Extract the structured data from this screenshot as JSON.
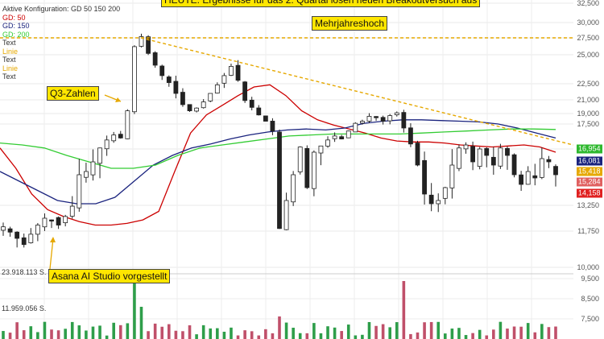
{
  "legend": {
    "title": "Aktive Konfiguration: GD 50 150 200",
    "items": [
      {
        "label": "GD: 50",
        "color": "#cc0000"
      },
      {
        "label": "GD: 150",
        "color": "#1a237e"
      },
      {
        "label": "GD: 200",
        "color": "#33cc33"
      },
      {
        "label": "Text",
        "color": "#333333"
      },
      {
        "label": "Linie",
        "color": "#e6a800"
      },
      {
        "label": "Text",
        "color": "#333333"
      },
      {
        "label": "Linie",
        "color": "#e6a800"
      },
      {
        "label": "Text",
        "color": "#333333"
      }
    ]
  },
  "annotations": {
    "headline": "HEUTE: Ergebnisse für das 2. Quartal lösen neuen Breakoutversuch aus",
    "mehrjahreshoch": "Mehrjahreshoch",
    "q3": "Q3-Zahlen",
    "asana": "Asana AI Studio vorgestellt"
  },
  "volume_labels": [
    "23.918.113 S.",
    "11.959.056 S."
  ],
  "price_tags": [
    {
      "label": "16,954",
      "value": 16.954,
      "color": "#2eb82e"
    },
    {
      "label": "16,081",
      "value": 16.081,
      "color": "#1a237e"
    },
    {
      "label": "15,418",
      "value": 15.418,
      "color": "#e6a800"
    },
    {
      "label": "15,284",
      "value": 15.284,
      "color": "#e06060"
    },
    {
      "label": "14,158",
      "value": 14.158,
      "color": "#e02020"
    }
  ],
  "chart_data": {
    "type": "candlestick",
    "price_axis": {
      "ticks": [
        "32,500",
        "30,000",
        "27,500",
        "25,000",
        "22,500",
        "21,000",
        "19,000",
        "17,500",
        "15,000",
        "13,250",
        "11,750",
        "10,000"
      ],
      "values": [
        32.5,
        30.0,
        27.5,
        25.0,
        22.5,
        21.0,
        19.0,
        17.5,
        15.0,
        13.25,
        11.75,
        10.0
      ],
      "range": [
        9.2,
        33.5
      ]
    },
    "volume_axis": {
      "ticks": [
        "9,500",
        "8,500",
        "7,500"
      ],
      "values": [
        9.5,
        8.5,
        7.5
      ]
    },
    "close_series": [
      12.0,
      11.7,
      11.4,
      11.1,
      11.6,
      12.1,
      12.5,
      12.4,
      12.1,
      12.6,
      13.2,
      14.2,
      14.3,
      14.6,
      15.1,
      15.9,
      16.4,
      16.1,
      19.4,
      26.2,
      27.7,
      25.2,
      24.1,
      23.2,
      22.6,
      21.6,
      20.3,
      19.4,
      19.8,
      20.7,
      21.6,
      22.4,
      23.2,
      24.0,
      22.8,
      20.9,
      19.9,
      18.8,
      17.9,
      16.8,
      11.9,
      13.4,
      14.2,
      15.2,
      13.8,
      14.9,
      15.3,
      15.9,
      16.3,
      16.0,
      16.8,
      17.6,
      17.9,
      18.6,
      18.4,
      17.9,
      18.7,
      19.1,
      17.1,
      15.5,
      14.5,
      13.6,
      13.3,
      13.4,
      13.8,
      14.5,
      15.1,
      15.4,
      14.6,
      15.0,
      14.8,
      14.5,
      15.1,
      14.8,
      14.2,
      13.9,
      14.3,
      14.1,
      14.7,
      14.6,
      14.2
    ],
    "series": [
      {
        "name": "GD: 50",
        "color": "#cc0000",
        "values": [
          15.1,
          14.4,
          13.6,
          13.0,
          12.6,
          12.3,
          12.1,
          12.1,
          12.2,
          12.4,
          12.9,
          14.3,
          16.6,
          18.8,
          20.2,
          21.4,
          22.2,
          22.4,
          21.4,
          19.4,
          18.1,
          17.4,
          17.0,
          16.6,
          16.1,
          15.8,
          15.7,
          15.7,
          15.6,
          15.4,
          15.3,
          15.2,
          15.3,
          15.4,
          15.2,
          14.9
        ]
      },
      {
        "name": "GD: 150",
        "color": "#1a237e",
        "values": [
          14.3,
          14.0,
          13.7,
          13.4,
          13.3,
          13.3,
          13.5,
          14.0,
          14.5,
          14.8,
          15.1,
          15.5,
          16.0,
          16.4,
          16.7,
          16.9,
          17.0,
          16.9,
          17.1,
          17.6,
          17.9,
          18.1,
          18.1,
          18.0,
          17.9,
          17.8,
          17.5,
          17.1,
          16.6,
          16.1
        ]
      },
      {
        "name": "GD: 200",
        "color": "#33cc33",
        "values": [
          15.6,
          15.4,
          15.1,
          14.8,
          14.6,
          14.4,
          14.4,
          14.5,
          14.8,
          15.1,
          15.4,
          15.7,
          16.0,
          16.3,
          16.4,
          16.5,
          16.5,
          16.5,
          16.5,
          16.6,
          16.7,
          16.8,
          16.9,
          17.0,
          17.0,
          16.95
        ]
      }
    ],
    "trendline": {
      "from": 27.5,
      "to": 15.4,
      "label": "Linie"
    },
    "resistance_level": 27.5
  }
}
